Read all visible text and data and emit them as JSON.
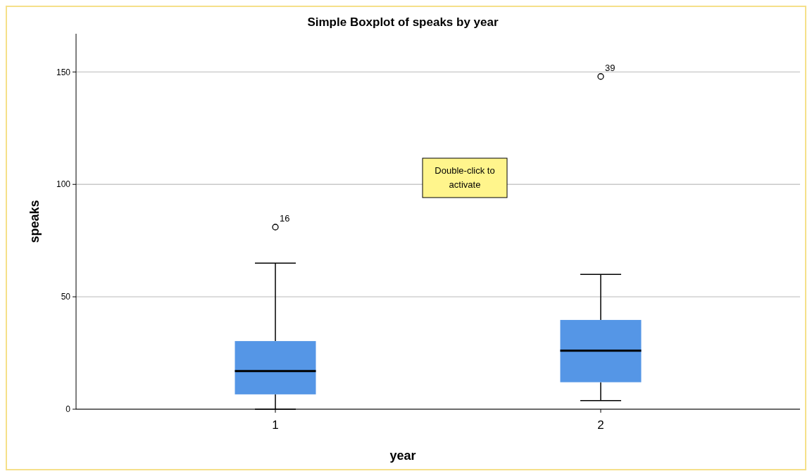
{
  "chart_data": {
    "type": "box",
    "title": "Simple Boxplot of speaks by year",
    "xlabel": "year",
    "ylabel": "speaks",
    "categories": [
      "1",
      "2"
    ],
    "color": "#5596e6",
    "boxes": [
      {
        "low": 0,
        "q1": 6.6,
        "median": 17,
        "q3": 30.3,
        "high": 65,
        "outliers": [
          81
        ]
      },
      {
        "low": 3.8,
        "q1": 12,
        "median": 26,
        "q3": 39.7,
        "high": 60,
        "outliers": [
          148
        ]
      }
    ],
    "ylim": [
      0,
      167
    ],
    "yticks": [
      0,
      50,
      100,
      150
    ],
    "grid": "y",
    "annotations": [
      "16",
      "39",
      "Double-click to activate"
    ]
  }
}
